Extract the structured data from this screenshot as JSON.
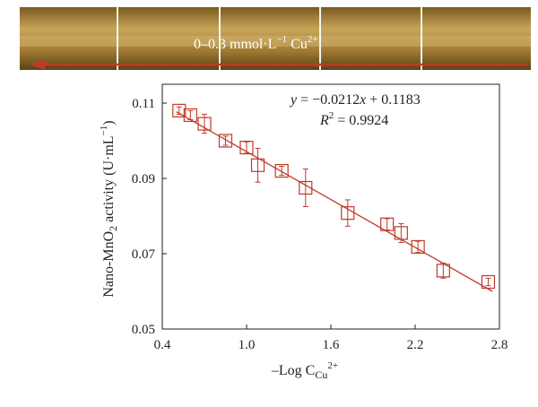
{
  "photo_strip": {
    "label_prefix": "0–0.3 mmol·L",
    "label_exp": "−1",
    "label_ion": " Cu",
    "label_charge": "2+",
    "arrow_color": "#c0392b"
  },
  "chart_data": {
    "type": "scatter",
    "xlabel_main": "–Log C",
    "xlabel_sub": "Cu",
    "xlabel_sup": "2+",
    "ylabel_pre": "Nano-MnO",
    "ylabel_sub": "2",
    "ylabel_mid": " activity (U·mL",
    "ylabel_sup": "−1",
    "ylabel_post": ")",
    "xlim": [
      0.4,
      2.8
    ],
    "ylim": [
      0.05,
      0.115
    ],
    "xticks": [
      0.4,
      1.0,
      1.6,
      2.2,
      2.8
    ],
    "xtick_labels": [
      "0.4",
      "1.0",
      "1.6",
      "2.2",
      "2.8"
    ],
    "yticks": [
      0.05,
      0.07,
      0.09,
      0.11
    ],
    "ytick_labels": [
      "0.05",
      "0.07",
      "0.09",
      "0.11"
    ],
    "equation": {
      "y": "y",
      "rest_a": " = −0.0212",
      "x": "x",
      "rest_b": " + 0.1183",
      "r": "R",
      "r_sup": "2",
      "r_val": " = 0.9924"
    },
    "fit": {
      "slope": -0.0212,
      "intercept": 0.1183,
      "x_range": [
        0.5,
        2.75
      ]
    },
    "color": "#c0392b",
    "points": [
      {
        "x": 0.52,
        "y": 0.108,
        "err": 0.001
      },
      {
        "x": 0.6,
        "y": 0.1068,
        "err": 0.0012
      },
      {
        "x": 0.7,
        "y": 0.1045,
        "err": 0.0025
      },
      {
        "x": 0.85,
        "y": 0.1,
        "err": 0.0012
      },
      {
        "x": 1.0,
        "y": 0.0982,
        "err": 0.0015
      },
      {
        "x": 1.08,
        "y": 0.0935,
        "err": 0.0045
      },
      {
        "x": 1.25,
        "y": 0.092,
        "err": 0.0012
      },
      {
        "x": 1.42,
        "y": 0.0875,
        "err": 0.005
      },
      {
        "x": 1.72,
        "y": 0.0808,
        "err": 0.0035
      },
      {
        "x": 2.0,
        "y": 0.0778,
        "err": 0.0015
      },
      {
        "x": 2.1,
        "y": 0.0755,
        "err": 0.0025
      },
      {
        "x": 2.22,
        "y": 0.0718,
        "err": 0.0015
      },
      {
        "x": 2.4,
        "y": 0.0655,
        "err": 0.002
      },
      {
        "x": 2.72,
        "y": 0.0625,
        "err": 0.001
      }
    ]
  }
}
